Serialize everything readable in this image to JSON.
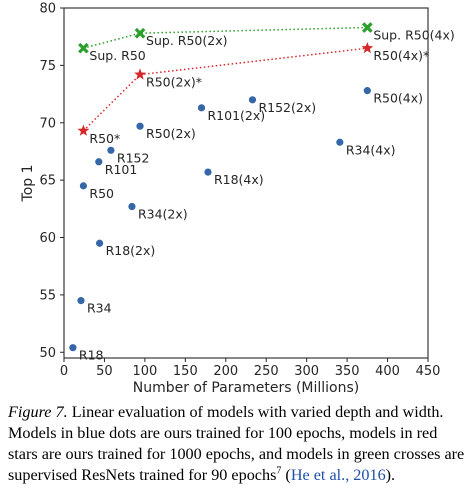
{
  "colors": {
    "blue": "#3566a8",
    "red": "#d62728",
    "green": "#2ca02c",
    "axis": "#262626"
  },
  "chart_data": {
    "type": "scatter",
    "xlabel": "Number of Parameters (Millions)",
    "ylabel": "Top 1",
    "xlim": [
      0,
      450
    ],
    "ylim": [
      49.5,
      80
    ],
    "xticks": [
      "0",
      "50",
      "100",
      "150",
      "200",
      "250",
      "300",
      "350",
      "400",
      "450"
    ],
    "yticks": [
      "50",
      "55",
      "60",
      "65",
      "70",
      "75",
      "80"
    ],
    "grid": false,
    "series": [
      {
        "marker": "dot",
        "color": "#3566a8",
        "connected": false,
        "points": [
          {
            "label": "R18",
            "x": 11,
            "y": 50.4
          },
          {
            "label": "R34",
            "x": 21,
            "y": 54.5
          },
          {
            "label": "R18(2x)",
            "x": 44,
            "y": 59.5
          },
          {
            "label": "R50",
            "x": 24,
            "y": 64.5
          },
          {
            "label": "R101",
            "x": 43,
            "y": 66.6
          },
          {
            "label": "R152",
            "x": 58,
            "y": 67.6
          },
          {
            "label": "R34(2x)",
            "x": 84,
            "y": 62.7
          },
          {
            "label": "R18(4x)",
            "x": 178,
            "y": 65.7
          },
          {
            "label": "R50(2x)",
            "x": 94,
            "y": 69.7
          },
          {
            "label": "R101(2x)",
            "x": 170,
            "y": 71.3
          },
          {
            "label": "R152(2x)",
            "x": 233,
            "y": 72.0
          },
          {
            "label": "R34(4x)",
            "x": 341,
            "y": 68.3
          },
          {
            "label": "R50(4x)",
            "x": 375,
            "y": 72.8
          }
        ]
      },
      {
        "marker": "star",
        "color": "#d62728",
        "connected": true,
        "points": [
          {
            "label": "R50*",
            "x": 24,
            "y": 69.3
          },
          {
            "label": "R50(2x)*",
            "x": 94,
            "y": 74.2
          },
          {
            "label": "R50(4x)*",
            "x": 375,
            "y": 76.5
          }
        ]
      },
      {
        "marker": "cross",
        "color": "#2ca02c",
        "connected": true,
        "points": [
          {
            "label": "Sup. R50",
            "x": 24,
            "y": 76.5
          },
          {
            "label": "Sup. R50(2x)",
            "x": 94,
            "y": 77.8
          },
          {
            "label": "Sup. R50(4x)",
            "x": 375,
            "y": 78.3
          }
        ]
      }
    ]
  },
  "caption": {
    "fig_label": "Figure 7.",
    "text": " Linear evaluation of models with varied depth and width. Models in blue dots are ours trained for 100 epochs, models in red stars are ours trained for 1000 epochs, and models in green crosses are supervised ResNets trained for 90 epochs",
    "footnote": "7",
    "cite_open": " (",
    "cite": "He et al., 2016",
    "cite_close": ")."
  }
}
